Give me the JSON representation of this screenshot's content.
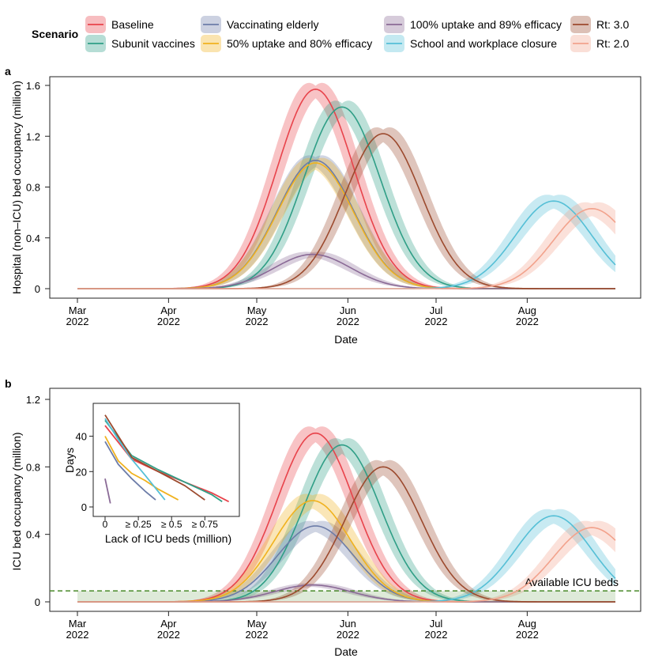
{
  "legend": {
    "title": "Scenario",
    "items": [
      {
        "label": "Baseline",
        "color": "#e8434b"
      },
      {
        "label": "Subunit vaccines",
        "color": "#2f9e86"
      },
      {
        "label": "Vaccinating elderly",
        "color": "#6c7ca8"
      },
      {
        "label": "50% uptake and 80% efficacy",
        "color": "#f0b21e"
      },
      {
        "label": "100% uptake and 89% efficacy",
        "color": "#8a6a96"
      },
      {
        "label": "School and workplace closure",
        "color": "#55bfd6"
      },
      {
        "label": "Rt: 3.0",
        "color": "#9c4a2e"
      },
      {
        "label": "Rt: 2.0",
        "color": "#f2a28c"
      }
    ]
  },
  "chart_data": [
    {
      "panel": "a",
      "type": "line",
      "ylabel": "Hospital (non–ICU) bed occupancy (million)",
      "xlabel": "Date",
      "x_ticks": [
        "Mar\n2022",
        "Apr\n2022",
        "May\n2022",
        "Jun\n2022",
        "Jul\n2022",
        "Aug\n2022"
      ],
      "y_ticks": [
        "0",
        "0.4",
        "0.8",
        "1.2",
        "1.6"
      ],
      "ylim": [
        0,
        1.6
      ],
      "xlim": [
        "2022-03-01",
        "2022-08-31"
      ],
      "series": [
        {
          "name": "Baseline",
          "peak_date": "2022-05-21",
          "peak": 1.57,
          "band": 0.05
        },
        {
          "name": "Subunit vaccines",
          "peak_date": "2022-05-30",
          "peak": 1.43,
          "band": 0.05
        },
        {
          "name": "Vaccinating elderly",
          "peak_date": "2022-05-21",
          "peak": 1.01,
          "band": 0.04
        },
        {
          "name": "50% uptake and 80% efficacy",
          "peak_date": "2022-05-21",
          "peak": 0.99,
          "band": 0.04
        },
        {
          "name": "100% uptake and 89% efficacy",
          "peak_date": "2022-05-20",
          "peak": 0.27,
          "band": 0.02
        },
        {
          "name": "School and workplace closure",
          "peak_date": "2022-08-10",
          "peak": 0.69,
          "band": 0.05
        },
        {
          "name": "Rt: 3.0",
          "peak_date": "2022-06-13",
          "peak": 1.22,
          "band": 0.05
        },
        {
          "name": "Rt: 2.0",
          "peak_date": "2022-08-23",
          "peak": 0.63,
          "band": 0.05
        }
      ]
    },
    {
      "panel": "b",
      "type": "line",
      "ylabel": "ICU bed occupancy (million)",
      "xlabel": "Date",
      "x_ticks": [
        "Mar\n2022",
        "Apr\n2022",
        "May\n2022",
        "Jun\n2022",
        "Jul\n2022",
        "Aug\n2022"
      ],
      "y_ticks": [
        "0",
        "0.4",
        "0.8",
        "1.2"
      ],
      "ylim": [
        0,
        1.2
      ],
      "xlim": [
        "2022-03-01",
        "2022-08-31"
      ],
      "threshold": {
        "label": "Available ICU beds",
        "value": 0.065,
        "color": "#4a8a2a"
      },
      "series": [
        {
          "name": "Baseline",
          "peak_date": "2022-05-21",
          "peak": 1.0,
          "band": 0.04
        },
        {
          "name": "Subunit vaccines",
          "peak_date": "2022-05-30",
          "peak": 0.93,
          "band": 0.04
        },
        {
          "name": "Vaccinating elderly",
          "peak_date": "2022-05-21",
          "peak": 0.45,
          "band": 0.03
        },
        {
          "name": "50% uptake and 80% efficacy",
          "peak_date": "2022-05-20",
          "peak": 0.6,
          "band": 0.04
        },
        {
          "name": "100% uptake and 89% efficacy",
          "peak_date": "2022-05-20",
          "peak": 0.1,
          "band": 0.01
        },
        {
          "name": "School and workplace closure",
          "peak_date": "2022-08-10",
          "peak": 0.51,
          "band": 0.04
        },
        {
          "name": "Rt: 3.0",
          "peak_date": "2022-06-13",
          "peak": 0.8,
          "band": 0.04
        },
        {
          "name": "Rt: 2.0",
          "peak_date": "2022-08-23",
          "peak": 0.44,
          "band": 0.04
        }
      ],
      "inset": {
        "type": "line",
        "xlabel": "Lack of ICU beds (million)",
        "ylabel": "Days",
        "x_ticks": [
          "0",
          "≥ 0.25",
          "≥ 0.5",
          "≥ 0.75"
        ],
        "y_ticks": [
          "0",
          "20",
          "40"
        ],
        "xlim": [
          0,
          0.95
        ],
        "ylim": [
          0,
          55
        ],
        "series": [
          {
            "name": "Baseline",
            "x": [
              0,
              0.2,
              0.4,
              0.6,
              0.8,
              0.93
            ],
            "y": [
              46,
              27,
              20,
              14,
              8,
              3
            ]
          },
          {
            "name": "Subunit vaccines",
            "x": [
              0,
              0.2,
              0.4,
              0.6,
              0.8,
              0.88
            ],
            "y": [
              49,
              29,
              21,
              14,
              7,
              3
            ]
          },
          {
            "name": "Vaccinating elderly",
            "x": [
              0,
              0.1,
              0.2,
              0.3,
              0.38
            ],
            "y": [
              37,
              24,
              16,
              9,
              4
            ]
          },
          {
            "name": "50% uptake and 80% efficacy",
            "x": [
              0,
              0.1,
              0.2,
              0.3,
              0.4,
              0.55
            ],
            "y": [
              40,
              26,
              19,
              15,
              10,
              4
            ]
          },
          {
            "name": "100% uptake and 89% efficacy",
            "x": [
              0,
              0.02,
              0.04
            ],
            "y": [
              16,
              9,
              2
            ]
          },
          {
            "name": "School and workplace closure",
            "x": [
              0,
              0.1,
              0.2,
              0.3,
              0.45
            ],
            "y": [
              50,
              38,
              27,
              18,
              4
            ]
          },
          {
            "name": "Rt: 3.0",
            "x": [
              0,
              0.2,
              0.4,
              0.6,
              0.75
            ],
            "y": [
              52,
              28,
              20,
              12,
              4
            ]
          }
        ]
      }
    }
  ]
}
